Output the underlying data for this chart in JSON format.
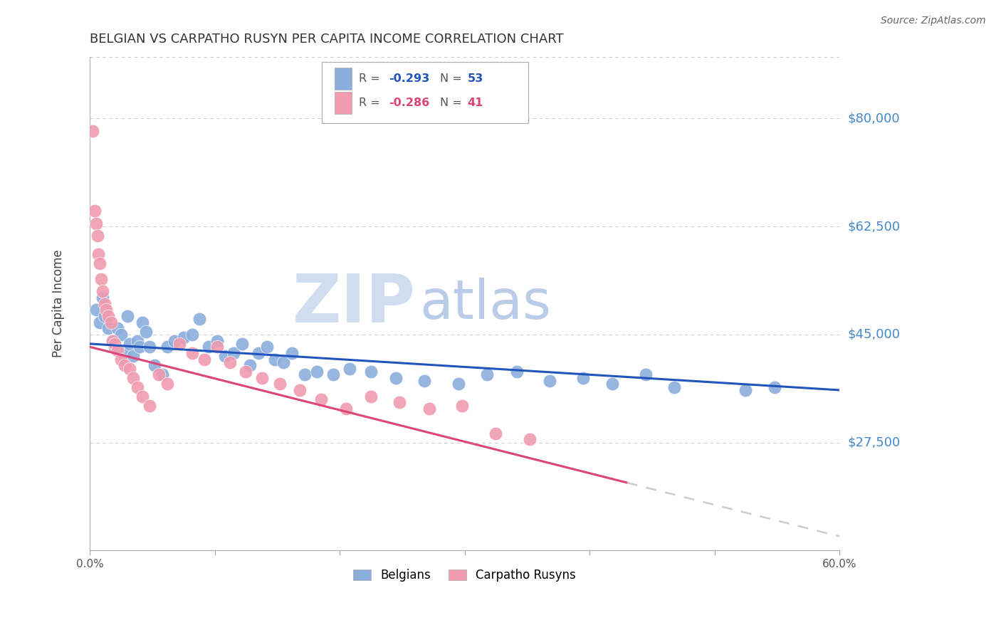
{
  "title": "BELGIAN VS CARPATHO RUSYN PER CAPITA INCOME CORRELATION CHART",
  "source": "Source: ZipAtlas.com",
  "ylabel": "Per Capita Income",
  "xlim": [
    0.0,
    0.6
  ],
  "ylim": [
    10000,
    90000
  ],
  "xticks": [
    0.0,
    0.1,
    0.2,
    0.3,
    0.4,
    0.5,
    0.6
  ],
  "xticklabels": [
    "0.0%",
    "",
    "",
    "",
    "",
    "",
    "60.0%"
  ],
  "ytick_values": [
    27500,
    45000,
    62500,
    80000
  ],
  "ytick_labels": [
    "$27,500",
    "$45,000",
    "$62,500",
    "$80,000"
  ],
  "belgian_color": "#8BAEDD",
  "rusyn_color": "#F09BB0",
  "belgian_line_color": "#2255BB",
  "rusyn_line_color": "#DD4477",
  "rusyn_line_dashed_color": "#CCCCCC",
  "background_color": "#FFFFFF",
  "grid_color": "#CCCCCC",
  "title_color": "#333333",
  "ytick_color": "#4488CC",
  "watermark_zip_color": "#D0DCF0",
  "watermark_atlas_color": "#BBCCE8",
  "legend_label_belgian": "Belgians",
  "legend_label_rusyn": "Carpatho Rusyns",
  "belgian_x": [
    0.005,
    0.008,
    0.01,
    0.012,
    0.015,
    0.018,
    0.02,
    0.022,
    0.025,
    0.028,
    0.03,
    0.032,
    0.035,
    0.038,
    0.04,
    0.042,
    0.045,
    0.048,
    0.052,
    0.058,
    0.062,
    0.068,
    0.075,
    0.082,
    0.088,
    0.095,
    0.102,
    0.108,
    0.115,
    0.122,
    0.128,
    0.135,
    0.142,
    0.148,
    0.155,
    0.162,
    0.172,
    0.182,
    0.195,
    0.208,
    0.225,
    0.245,
    0.268,
    0.295,
    0.318,
    0.342,
    0.368,
    0.395,
    0.418,
    0.445,
    0.468,
    0.525,
    0.548
  ],
  "belgian_y": [
    49000,
    47000,
    51000,
    48000,
    46000,
    44000,
    43000,
    46000,
    45000,
    42000,
    48000,
    43500,
    41500,
    44000,
    43000,
    47000,
    45500,
    43000,
    40000,
    38500,
    43000,
    44000,
    44500,
    45000,
    47500,
    43000,
    44000,
    41500,
    42000,
    43500,
    40000,
    42000,
    43000,
    41000,
    40500,
    42000,
    38500,
    39000,
    38500,
    39500,
    39000,
    38000,
    37500,
    37000,
    38500,
    39000,
    37500,
    38000,
    37000,
    38500,
    36500,
    36000,
    36500
  ],
  "rusyn_x": [
    0.002,
    0.004,
    0.005,
    0.006,
    0.007,
    0.008,
    0.009,
    0.01,
    0.012,
    0.013,
    0.015,
    0.017,
    0.018,
    0.02,
    0.022,
    0.025,
    0.028,
    0.032,
    0.035,
    0.038,
    0.042,
    0.048,
    0.055,
    0.062,
    0.072,
    0.082,
    0.092,
    0.102,
    0.112,
    0.125,
    0.138,
    0.152,
    0.168,
    0.185,
    0.205,
    0.225,
    0.248,
    0.272,
    0.298,
    0.325,
    0.352
  ],
  "rusyn_y": [
    78000,
    65000,
    63000,
    61000,
    58000,
    56500,
    54000,
    52000,
    50000,
    49000,
    48000,
    47000,
    44000,
    43500,
    42500,
    41000,
    40000,
    39500,
    38000,
    36500,
    35000,
    33500,
    38500,
    37000,
    43500,
    42000,
    41000,
    43000,
    40500,
    39000,
    38000,
    37000,
    36000,
    34500,
    33000,
    35000,
    34000,
    33000,
    33500,
    29000,
    28000
  ]
}
